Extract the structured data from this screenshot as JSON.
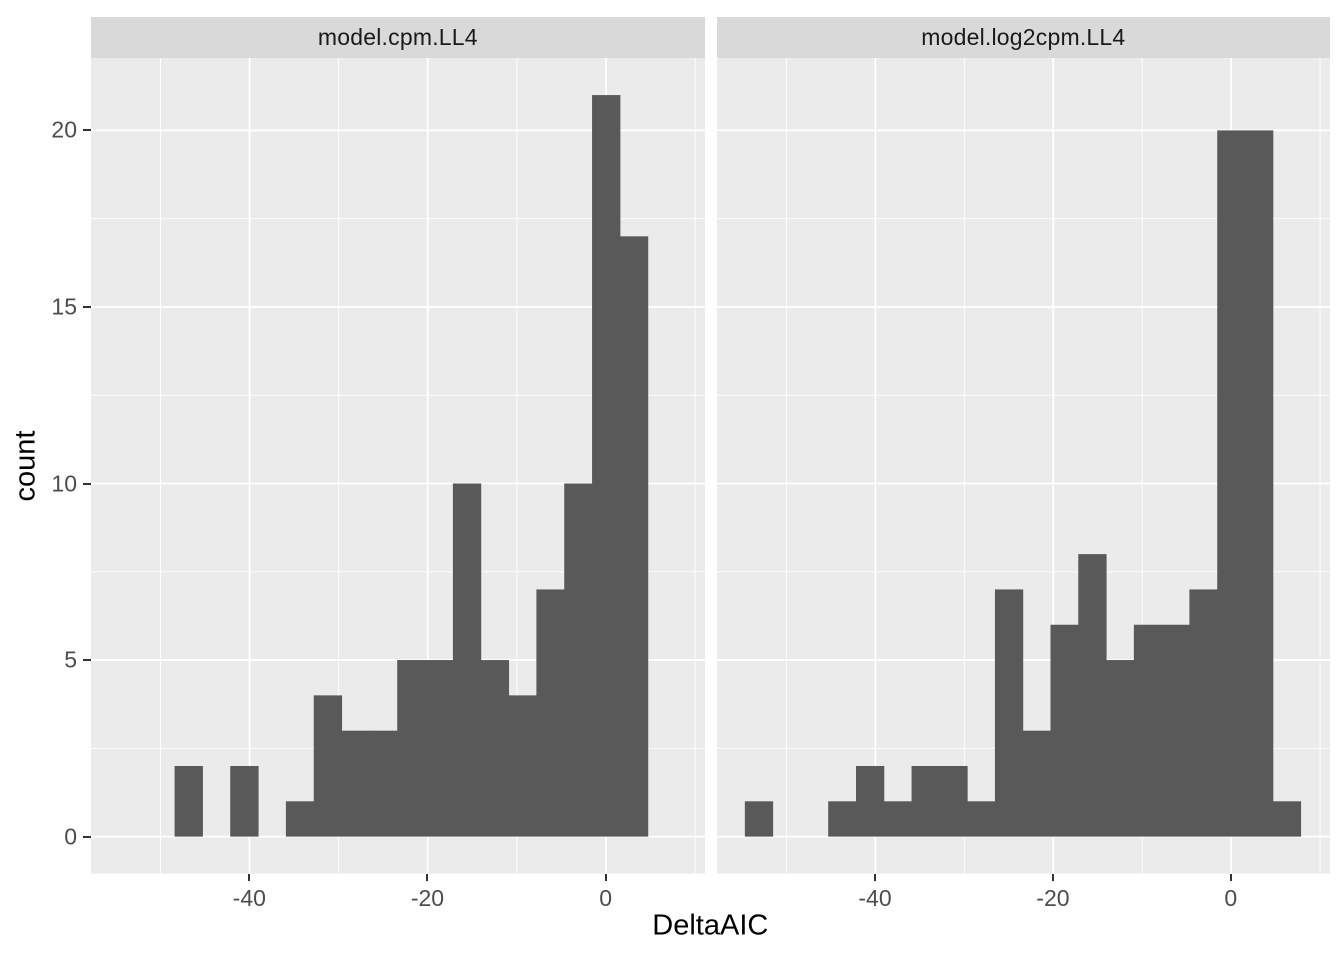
{
  "figure": {
    "kind": "ggplot2 faceted histogram",
    "xlabel": "DeltaAIC",
    "ylabel": "count"
  },
  "chart_data": {
    "type": "bar",
    "subtype": "histogram-faceted",
    "title": "",
    "xlabel": "DeltaAIC",
    "ylabel": "count",
    "binwidth": 3.124,
    "x_domain": [
      -57.8,
      11.15
    ],
    "y_domain": [
      -1.05,
      22.05
    ],
    "x_ticks": [
      {
        "value": -40,
        "label": "-40"
      },
      {
        "value": -20,
        "label": "-20"
      },
      {
        "value": 0,
        "label": "0"
      }
    ],
    "y_ticks": [
      {
        "value": 0,
        "label": "0"
      },
      {
        "value": 5,
        "label": "5"
      },
      {
        "value": 10,
        "label": "10"
      },
      {
        "value": 15,
        "label": "15"
      },
      {
        "value": 20,
        "label": "20"
      }
    ],
    "x_minor_gridlines": [
      -50,
      -30,
      -10,
      10
    ],
    "y_minor_gridlines": [
      2.5,
      7.5,
      12.5,
      17.5
    ],
    "grid": true,
    "legend": "none",
    "facets": [
      {
        "label": "model.cpm.LL4",
        "bin_start": -48.42,
        "counts": [
          2,
          0,
          2,
          0,
          1,
          4,
          3,
          3,
          5,
          5,
          10,
          5,
          4,
          7,
          10,
          21,
          17
        ]
      },
      {
        "label": "model.log2cpm.LL4",
        "bin_start": -54.67,
        "counts": [
          1,
          0,
          0,
          1,
          2,
          1,
          2,
          2,
          1,
          7,
          3,
          6,
          8,
          5,
          6,
          6,
          7,
          20,
          20,
          1
        ]
      }
    ],
    "colors": {
      "bar": "#595959",
      "panel_bg": "#EBEBEB",
      "gridline": "#FFFFFF",
      "strip_bg": "#D9D9D9",
      "strip_text": "#1A1A1A",
      "tick_text": "#4D4D4D",
      "title_text": "#000000",
      "tick_mark": "#333333",
      "background": "#FFFFFF"
    }
  }
}
